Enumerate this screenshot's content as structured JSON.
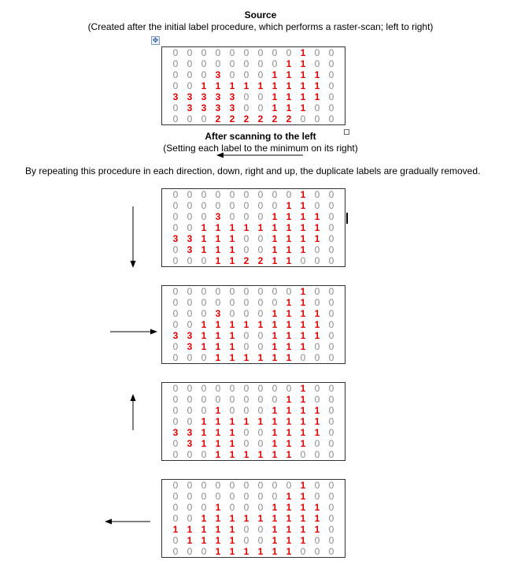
{
  "heading_source": "Source",
  "subtitle_source": "(Created after the initial label procedure, which performs a raster-scan; left to right)",
  "heading_left": "After scanning to the left",
  "subtitle_left": "(Setting each label to the minimum on its right)",
  "paragraph": "By repeating this procedure in each direction, down, right and up, the duplicate labels are gradually removed.",
  "icons": {
    "anchor": "move-anchor-icon",
    "handle": "resize-handle-icon"
  },
  "colors": {
    "zero": "#8a8a8a",
    "label": "#e00000"
  },
  "grids": [
    [
      [
        0,
        0,
        0,
        0,
        0,
        0,
        0,
        0,
        0,
        1,
        0,
        0
      ],
      [
        0,
        0,
        0,
        0,
        0,
        0,
        0,
        0,
        1,
        1,
        0,
        0
      ],
      [
        0,
        0,
        0,
        3,
        0,
        0,
        0,
        1,
        1,
        1,
        1,
        0
      ],
      [
        0,
        0,
        1,
        1,
        1,
        1,
        1,
        1,
        1,
        1,
        1,
        0
      ],
      [
        3,
        3,
        3,
        3,
        3,
        0,
        0,
        1,
        1,
        1,
        1,
        0
      ],
      [
        0,
        3,
        3,
        3,
        3,
        0,
        0,
        1,
        1,
        1,
        0,
        0
      ],
      [
        0,
        0,
        0,
        2,
        2,
        2,
        2,
        2,
        2,
        0,
        0,
        0
      ]
    ],
    [
      [
        0,
        0,
        0,
        0,
        0,
        0,
        0,
        0,
        0,
        1,
        0,
        0
      ],
      [
        0,
        0,
        0,
        0,
        0,
        0,
        0,
        0,
        1,
        1,
        0,
        0
      ],
      [
        0,
        0,
        0,
        3,
        0,
        0,
        0,
        1,
        1,
        1,
        1,
        0
      ],
      [
        0,
        0,
        1,
        1,
        1,
        1,
        1,
        1,
        1,
        1,
        1,
        0
      ],
      [
        3,
        3,
        1,
        1,
        1,
        0,
        0,
        1,
        1,
        1,
        1,
        0
      ],
      [
        0,
        3,
        1,
        1,
        1,
        0,
        0,
        1,
        1,
        1,
        0,
        0
      ],
      [
        0,
        0,
        0,
        1,
        1,
        2,
        2,
        1,
        1,
        0,
        0,
        0
      ]
    ],
    [
      [
        0,
        0,
        0,
        0,
        0,
        0,
        0,
        0,
        0,
        1,
        0,
        0
      ],
      [
        0,
        0,
        0,
        0,
        0,
        0,
        0,
        0,
        1,
        1,
        0,
        0
      ],
      [
        0,
        0,
        0,
        3,
        0,
        0,
        0,
        1,
        1,
        1,
        1,
        0
      ],
      [
        0,
        0,
        1,
        1,
        1,
        1,
        1,
        1,
        1,
        1,
        1,
        0
      ],
      [
        3,
        3,
        1,
        1,
        1,
        0,
        0,
        1,
        1,
        1,
        1,
        0
      ],
      [
        0,
        3,
        1,
        1,
        1,
        0,
        0,
        1,
        1,
        1,
        0,
        0
      ],
      [
        0,
        0,
        0,
        1,
        1,
        1,
        1,
        1,
        1,
        0,
        0,
        0
      ]
    ],
    [
      [
        0,
        0,
        0,
        0,
        0,
        0,
        0,
        0,
        0,
        1,
        0,
        0
      ],
      [
        0,
        0,
        0,
        0,
        0,
        0,
        0,
        0,
        1,
        1,
        0,
        0
      ],
      [
        0,
        0,
        0,
        1,
        0,
        0,
        0,
        1,
        1,
        1,
        1,
        0
      ],
      [
        0,
        0,
        1,
        1,
        1,
        1,
        1,
        1,
        1,
        1,
        1,
        0
      ],
      [
        3,
        3,
        1,
        1,
        1,
        0,
        0,
        1,
        1,
        1,
        1,
        0
      ],
      [
        0,
        3,
        1,
        1,
        1,
        0,
        0,
        1,
        1,
        1,
        0,
        0
      ],
      [
        0,
        0,
        0,
        1,
        1,
        1,
        1,
        1,
        1,
        0,
        0,
        0
      ]
    ],
    [
      [
        0,
        0,
        0,
        0,
        0,
        0,
        0,
        0,
        0,
        1,
        0,
        0
      ],
      [
        0,
        0,
        0,
        0,
        0,
        0,
        0,
        0,
        1,
        1,
        0,
        0
      ],
      [
        0,
        0,
        0,
        1,
        0,
        0,
        0,
        1,
        1,
        1,
        1,
        0
      ],
      [
        0,
        0,
        1,
        1,
        1,
        1,
        1,
        1,
        1,
        1,
        1,
        0
      ],
      [
        1,
        1,
        1,
        1,
        1,
        0,
        0,
        1,
        1,
        1,
        1,
        0
      ],
      [
        0,
        1,
        1,
        1,
        1,
        0,
        0,
        1,
        1,
        1,
        0,
        0
      ],
      [
        0,
        0,
        0,
        1,
        1,
        1,
        1,
        1,
        1,
        0,
        0,
        0
      ]
    ]
  ]
}
